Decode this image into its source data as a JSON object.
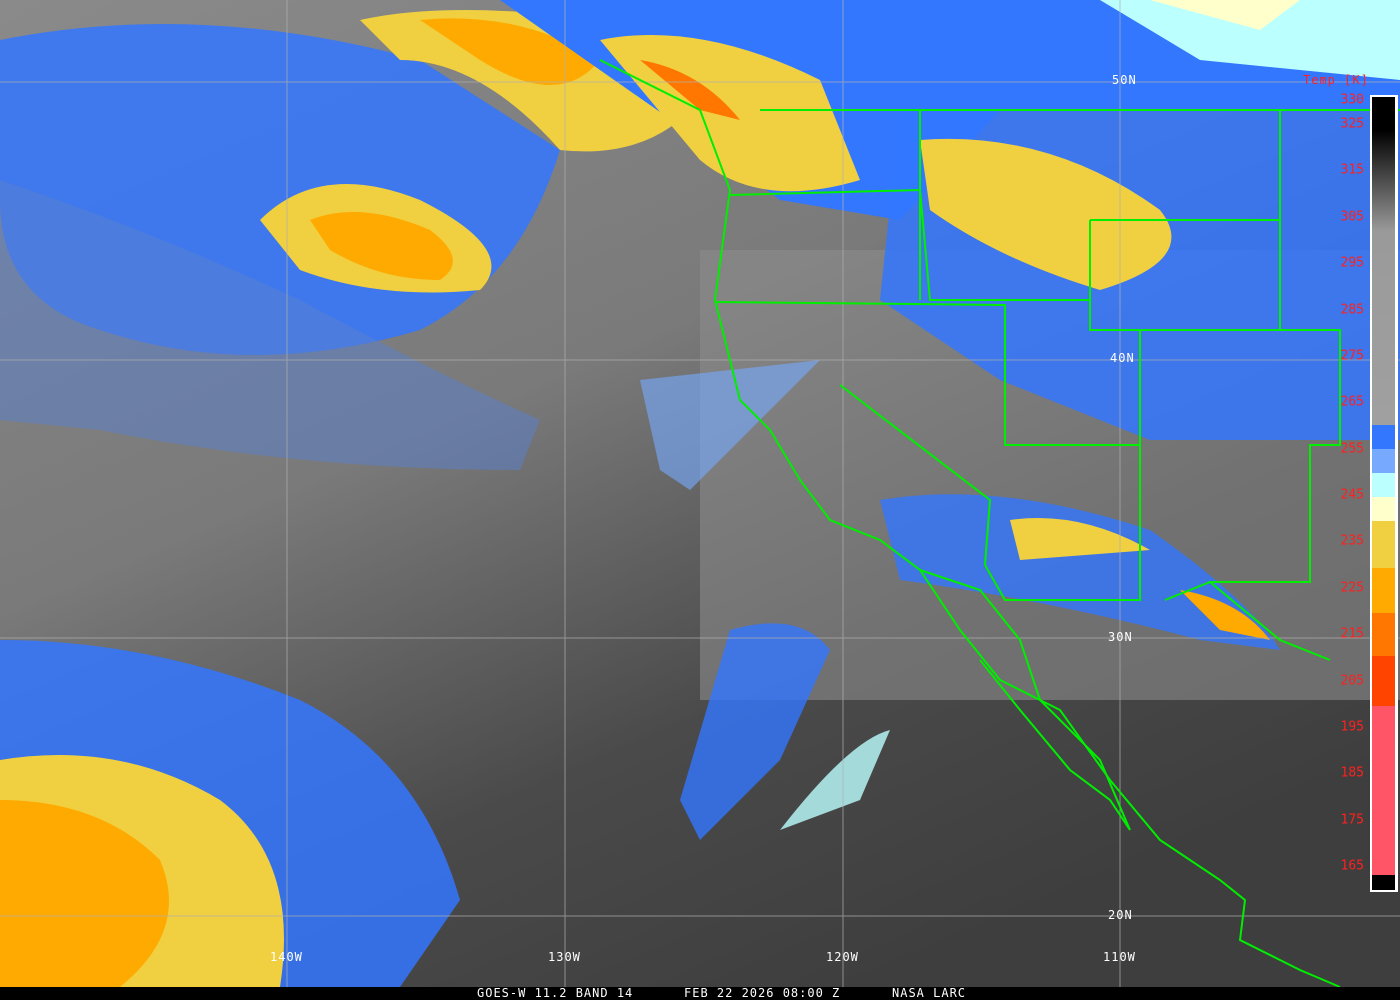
{
  "image": {
    "caption": {
      "sensor": "GOES-W 11.2 BAND 14",
      "datetime": "FEB 22 2026 08:00 Z",
      "source": "NASA LARC"
    },
    "latitude_labels": [
      "50N",
      "40N",
      "30N",
      "20N"
    ],
    "longitude_labels": [
      "140W",
      "130W",
      "120W",
      "110W"
    ],
    "colorbar": {
      "title": "Temp [K]",
      "ticks": [
        "330",
        "325",
        "315",
        "305",
        "295",
        "285",
        "275",
        "265",
        "255",
        "245",
        "235",
        "225",
        "215",
        "205",
        "195",
        "185",
        "175",
        "165"
      ],
      "colors": {
        "cold_black": "#000000",
        "gray": "#9a9a9a",
        "blue": "#3377ff",
        "light_blue": "#77aaff",
        "cyan": "#bbffff",
        "cream": "#ffffcc",
        "yellow": "#f0d040",
        "orange": "#ffaa00",
        "dark_orange": "#ff7700",
        "red_orange": "#ff4400",
        "pink": "#ff5566"
      }
    },
    "boundary_color": "#00ee00"
  }
}
